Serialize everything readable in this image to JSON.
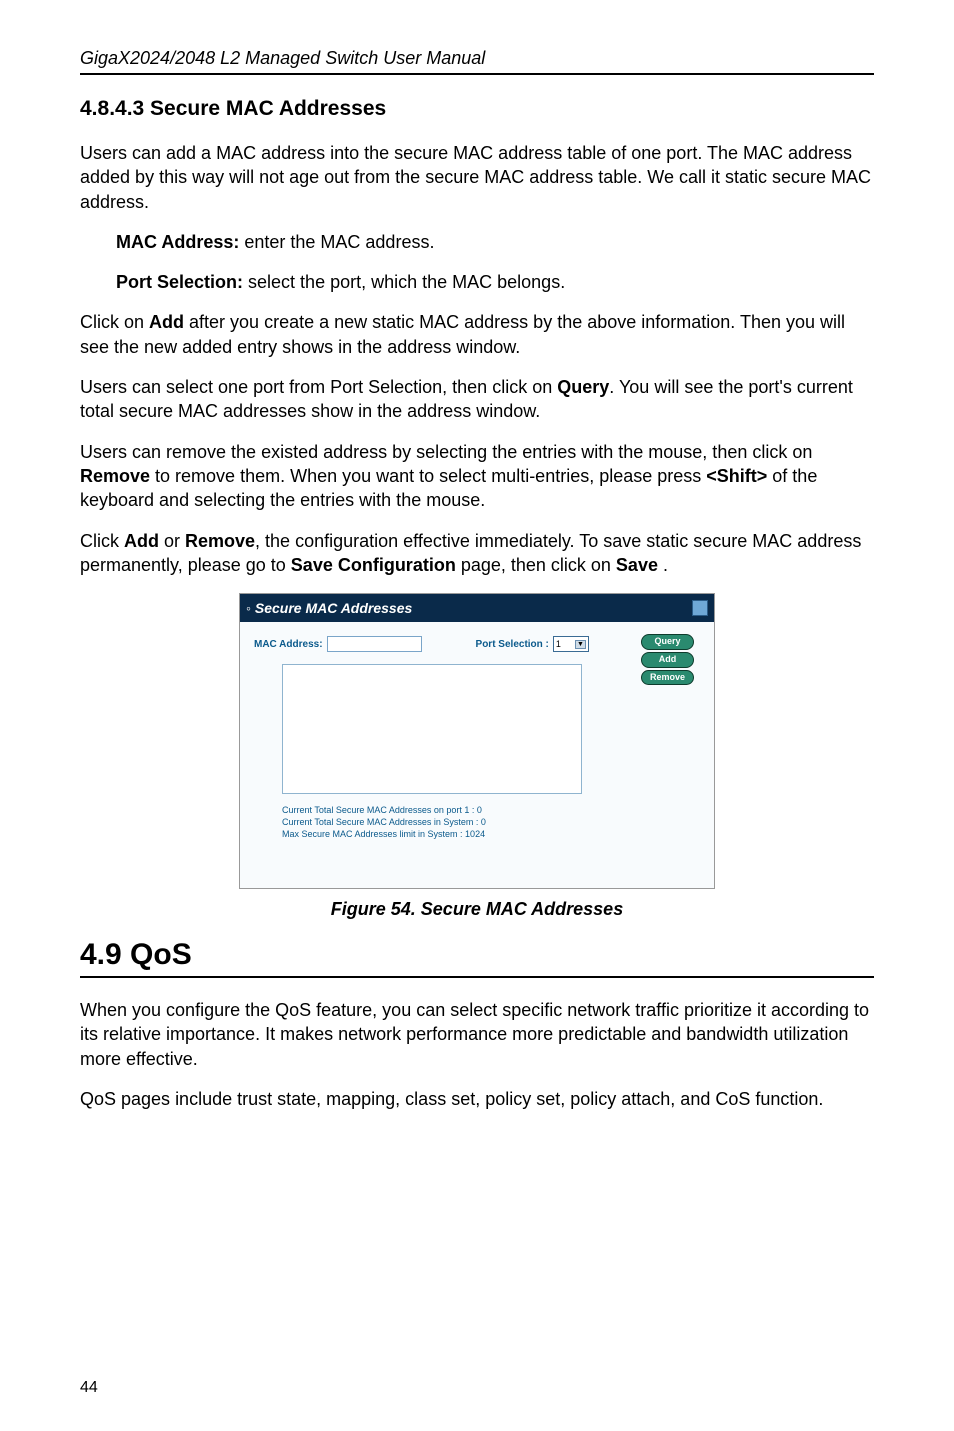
{
  "header": {
    "title": "GigaX2024/2048 L2 Managed Switch User Manual"
  },
  "section_4843": {
    "heading": "4.8.4.3 Secure MAC Addresses",
    "para1": "Users can add a MAC address into the secure MAC address table of one port. The MAC address added by this way will not age out from the secure MAC address table. We call it static secure MAC address.",
    "mac_label": "MAC Address:",
    "mac_desc": " enter the MAC address.",
    "port_label": "Port Selection:",
    "port_desc": " select the port, which the MAC belongs.",
    "para2_pre": "Click on ",
    "para2_bold1": "Add",
    "para2_post1": " after you create a new static MAC address by the above information. Then you will see the new added entry shows in the address window.",
    "para3_pre": "Users can select one port from Port Selection, then click on ",
    "para3_bold": "Query",
    "para3_post": ". You will see the port's current total secure MAC addresses show in the address window.",
    "para4_pre": "Users can remove the existed address by selecting the entries with the mouse, then click on ",
    "para4_bold1": "Remove",
    "para4_mid": " to remove them. When you want to select multi-entries, please press ",
    "para4_bold2": "<Shift>",
    "para4_post": " of the keyboard and selecting the entries with the mouse.",
    "para5_pre": "Click ",
    "para5_bold1": "Add",
    "para5_mid1": " or ",
    "para5_bold2": "Remove",
    "para5_mid2": ", the configuration effective immediately. To save static secure MAC address permanently, please go to ",
    "para5_bold3": "Save Configuration",
    "para5_mid3": " page, then click on ",
    "para5_bold4": "Save",
    "para5_post": " ."
  },
  "screenshot": {
    "title": "Secure MAC Addresses",
    "mac_label": "MAC Address:",
    "port_label": "Port Selection :",
    "port_value": "1",
    "btn_query": "Query",
    "btn_add": "Add",
    "btn_remove": "Remove",
    "footer1": "Current Total Secure MAC Addresses on port 1 : 0",
    "footer2": "Current Total Secure MAC Addresses in System : 0",
    "footer3": "Max Secure MAC Addresses limit in System : 1024"
  },
  "figure_caption": "Figure 54. Secure MAC Addresses",
  "section_49": {
    "heading": "4.9 QoS",
    "para1": "When you configure the QoS feature, you can select specific network traffic prioritize it according to its relative importance. It makes network performance more predictable and bandwidth utilization more effective.",
    "para2": "QoS pages include trust state, mapping, class set, policy set, policy attach, and CoS function."
  },
  "page_number": "44",
  "colors": {
    "text": "#000000",
    "screenshot_bg": "#f8fbfd",
    "titlebar_bg": "#0a2a4a",
    "label_color": "#0b5a8c",
    "btn_bg": "#2a8a6f"
  }
}
